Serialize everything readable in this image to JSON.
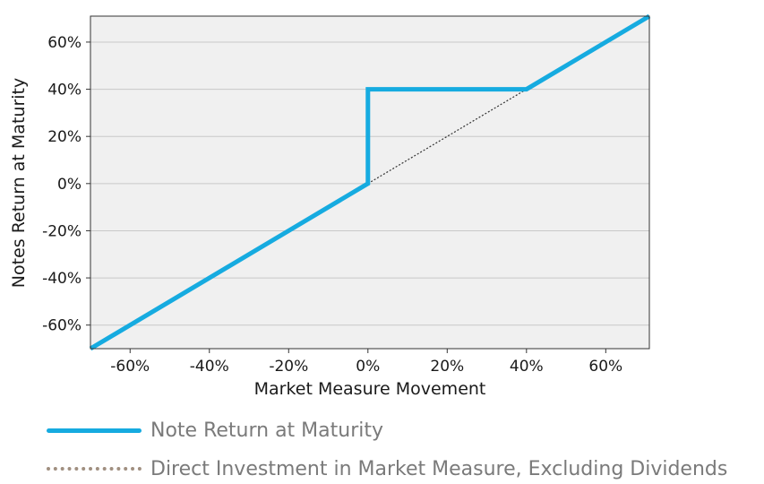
{
  "chart_data": {
    "type": "line",
    "xlabel": "Market Measure Movement",
    "ylabel": "Notes Return at Maturity",
    "xlim": [
      -70,
      71
    ],
    "ylim": [
      -70,
      71
    ],
    "x_ticks": [
      "-60%",
      "-40%",
      "-20%",
      "0%",
      "20%",
      "40%",
      "60%"
    ],
    "x_tick_values": [
      -60,
      -40,
      -20,
      0,
      20,
      40,
      60
    ],
    "y_ticks": [
      "60%",
      "40%",
      "20%",
      "0%",
      "-20%",
      "-40%",
      "-60%"
    ],
    "y_tick_values": [
      60,
      40,
      20,
      0,
      -20,
      -40,
      -60
    ],
    "grid": "horizontal",
    "legend_placement": "bottom",
    "series": [
      {
        "name": "Note Return at Maturity",
        "style": "solid",
        "color": "#16ABE0",
        "x": [
          -70,
          0,
          0,
          40,
          71
        ],
        "y": [
          -70,
          0,
          40,
          40,
          71
        ]
      },
      {
        "name": "Direct Investment in Market Measure, Excluding Dividends",
        "style": "dotted",
        "color": "#333333",
        "legend_color": "#A08F80",
        "x": [
          0,
          40
        ],
        "y": [
          0,
          40
        ]
      }
    ]
  },
  "colors": {
    "plot_background": "#F0F0F0",
    "gridline": "#C8C8C8",
    "axis": "#333333"
  }
}
